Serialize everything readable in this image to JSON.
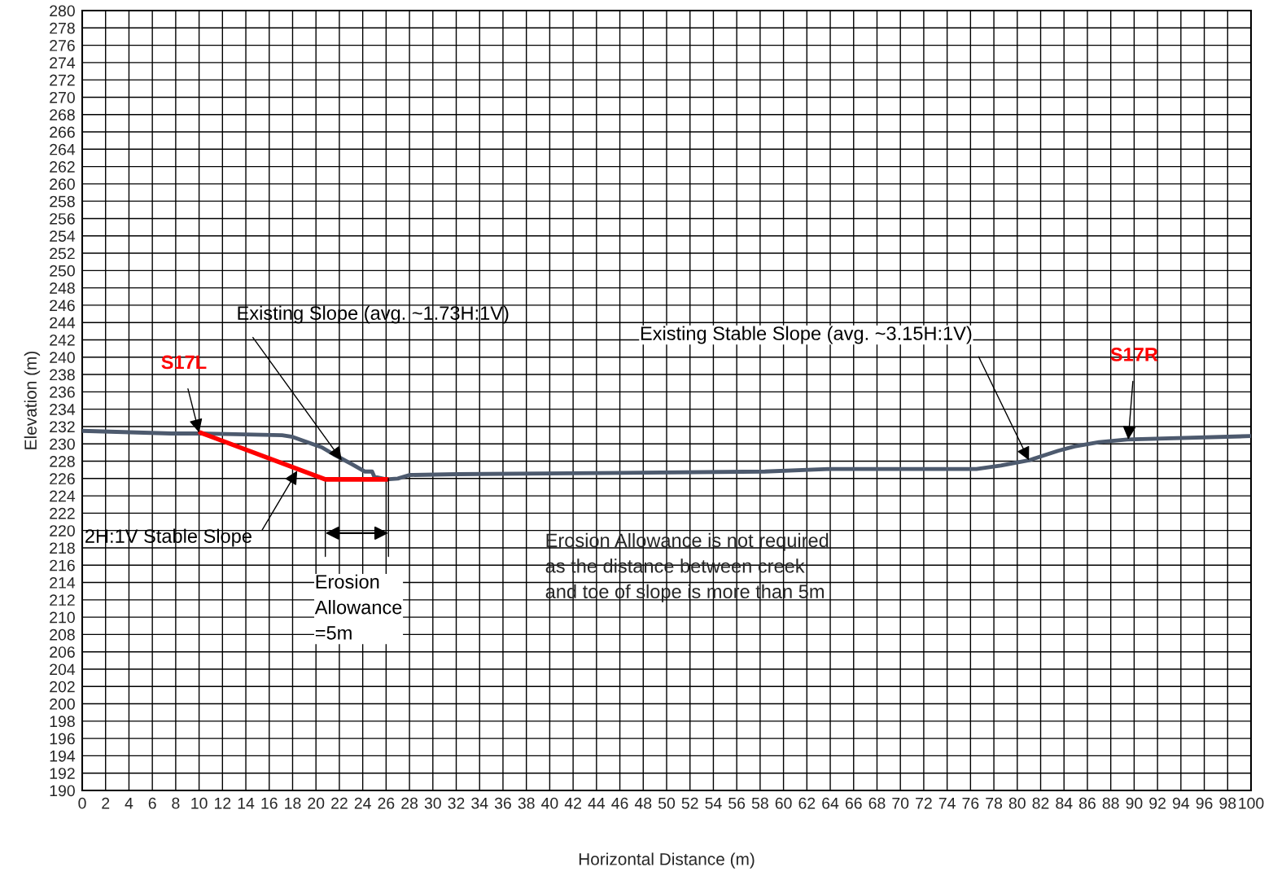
{
  "chart_data": {
    "type": "line",
    "xlabel": "Horizontal Distance (m)",
    "ylabel": "Elevation (m)",
    "xlim": [
      0,
      100
    ],
    "ylim": [
      190,
      280
    ],
    "xticks": [
      0,
      2,
      4,
      6,
      8,
      10,
      12,
      14,
      16,
      18,
      20,
      22,
      24,
      26,
      28,
      30,
      32,
      34,
      36,
      38,
      40,
      42,
      44,
      46,
      48,
      50,
      52,
      54,
      56,
      58,
      60,
      62,
      64,
      66,
      68,
      70,
      72,
      74,
      76,
      78,
      80,
      82,
      84,
      86,
      88,
      90,
      92,
      94,
      96,
      98,
      100
    ],
    "yticks": [
      190,
      192,
      194,
      196,
      198,
      200,
      202,
      204,
      206,
      208,
      210,
      212,
      214,
      216,
      218,
      220,
      222,
      224,
      226,
      228,
      230,
      232,
      234,
      236,
      238,
      240,
      242,
      244,
      246,
      248,
      250,
      252,
      254,
      256,
      258,
      260,
      262,
      264,
      266,
      268,
      270,
      272,
      274,
      276,
      278,
      280
    ],
    "grid": true,
    "legend": false,
    "marker": "none",
    "line_style": "solid",
    "series": [
      {
        "color": "#4d5a6e",
        "x": [
          0,
          7.6,
          10,
          17.1,
          18,
          20.5,
          21.5,
          23,
          24.2,
          24.8,
          25,
          26,
          27,
          28,
          32,
          41.7,
          58.4,
          64,
          76.5,
          78.6,
          81,
          83.5,
          84.9,
          87,
          89.4,
          100
        ],
        "values": [
          231.5,
          231.2,
          231.2,
          231.0,
          230.8,
          229.6,
          228.8,
          227.7,
          226.8,
          226.8,
          226.2,
          225.9,
          226.0,
          226.4,
          226.5,
          226.6,
          226.8,
          227.1,
          227.1,
          227.5,
          228.1,
          229.2,
          229.7,
          230.2,
          230.5,
          230.9
        ]
      },
      {
        "color": "#ff0000",
        "x": [
          10.1,
          20.8,
          26.1
        ],
        "values": [
          231.3,
          225.9,
          225.9
        ]
      }
    ],
    "annotations": [
      {
        "text": "S17L",
        "x": 10,
        "y": 231.3
      },
      {
        "text": "S17R",
        "x": 89.5,
        "y": 230.5
      },
      {
        "text": "Existing Slope (avg. ~1.73H:1V)",
        "x": 22.2,
        "y": 228.1
      },
      {
        "text": "Existing Stable Slope (avg. ~3.15H:1V)",
        "x": 81,
        "y": 228.1
      },
      {
        "text": "2H:1V Stable Slope",
        "x": 18.4,
        "y": 226.9
      },
      {
        "text": "Erosion\nAllowance\n=5m",
        "x": 20.8,
        "y": 225.9
      },
      "Erosion Allowance is not required\nas the distance between creek\nand toe of slope is more than 5m"
    ]
  }
}
